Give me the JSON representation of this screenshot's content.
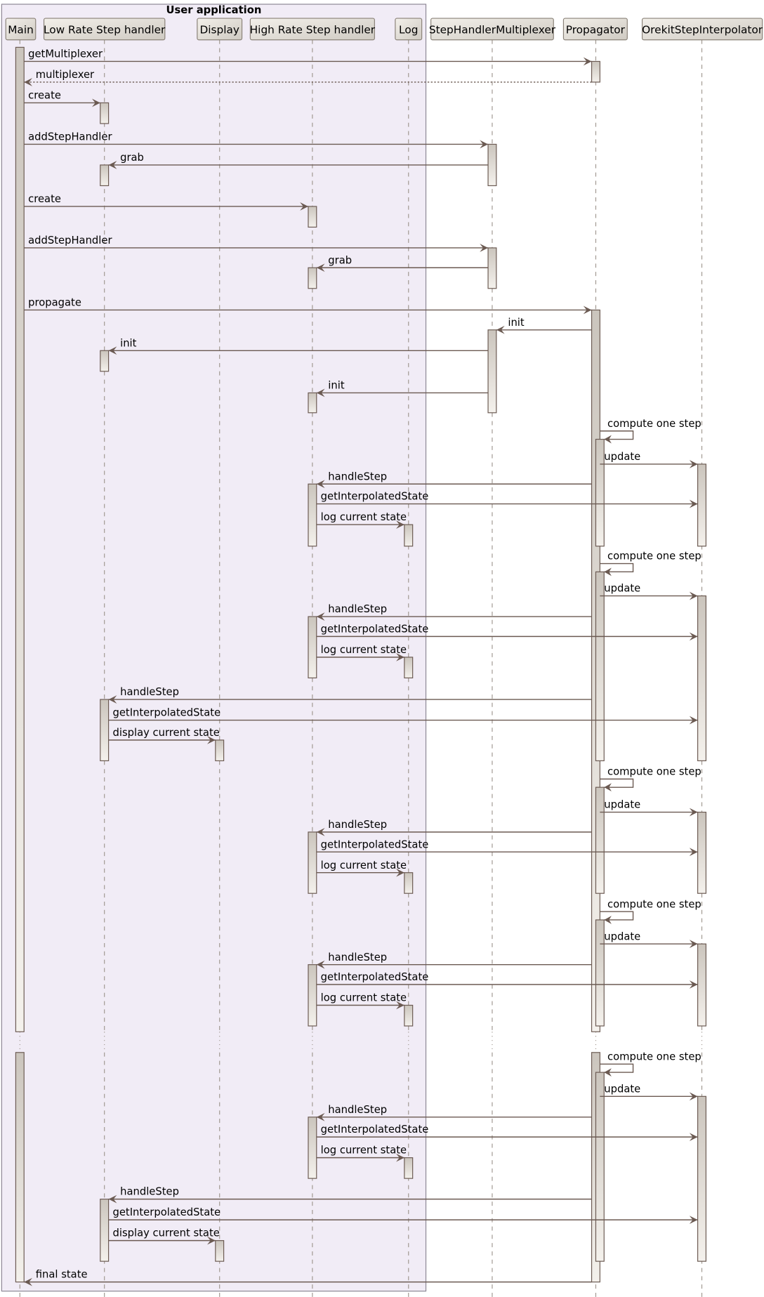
{
  "group": {
    "title": "User application",
    "members": [
      "Main",
      "Low Rate Step handler",
      "Display",
      "High Rate Step handler",
      "Log"
    ]
  },
  "participants": [
    {
      "id": "main",
      "label": "Main"
    },
    {
      "id": "low",
      "label": "Low Rate Step handler"
    },
    {
      "id": "display",
      "label": "Display"
    },
    {
      "id": "high",
      "label": "High Rate Step handler"
    },
    {
      "id": "log",
      "label": "Log"
    },
    {
      "id": "mux",
      "label": "StepHandlerMultiplexer"
    },
    {
      "id": "prop",
      "label": "Propagator"
    },
    {
      "id": "orekit",
      "label": "OrekitStepInterpolator"
    }
  ],
  "messages": [
    {
      "from": "main",
      "to": "prop",
      "label": "getMultiplexer"
    },
    {
      "from": "prop",
      "to": "main",
      "label": "multiplexer",
      "dashed": true
    },
    {
      "from": "main",
      "to": "low",
      "label": "create"
    },
    {
      "from": "main",
      "to": "mux",
      "label": "addStepHandler"
    },
    {
      "from": "mux",
      "to": "low",
      "label": "grab"
    },
    {
      "from": "main",
      "to": "high",
      "label": "create"
    },
    {
      "from": "main",
      "to": "mux",
      "label": "addStepHandler"
    },
    {
      "from": "mux",
      "to": "high",
      "label": "grab"
    },
    {
      "from": "main",
      "to": "prop",
      "label": "propagate"
    },
    {
      "from": "prop",
      "to": "mux",
      "label": "init"
    },
    {
      "from": "mux",
      "to": "low",
      "label": "init"
    },
    {
      "from": "mux",
      "to": "high",
      "label": "init"
    },
    {
      "from": "prop",
      "to": "prop",
      "label": "compute one step"
    },
    {
      "from": "prop",
      "to": "orekit",
      "label": "update"
    },
    {
      "from": "prop",
      "to": "high",
      "label": "handleStep"
    },
    {
      "from": "high",
      "to": "orekit",
      "label": "getInterpolatedState"
    },
    {
      "from": "high",
      "to": "log",
      "label": "log current state"
    },
    {
      "from": "prop",
      "to": "prop",
      "label": "compute one step"
    },
    {
      "from": "prop",
      "to": "orekit",
      "label": "update"
    },
    {
      "from": "prop",
      "to": "high",
      "label": "handleStep"
    },
    {
      "from": "high",
      "to": "orekit",
      "label": "getInterpolatedState"
    },
    {
      "from": "high",
      "to": "log",
      "label": "log current state"
    },
    {
      "from": "prop",
      "to": "low",
      "label": "handleStep"
    },
    {
      "from": "low",
      "to": "orekit",
      "label": "getInterpolatedState"
    },
    {
      "from": "low",
      "to": "display",
      "label": "display current state"
    },
    {
      "from": "prop",
      "to": "prop",
      "label": "compute one step"
    },
    {
      "from": "prop",
      "to": "orekit",
      "label": "update"
    },
    {
      "from": "prop",
      "to": "high",
      "label": "handleStep"
    },
    {
      "from": "high",
      "to": "orekit",
      "label": "getInterpolatedState"
    },
    {
      "from": "high",
      "to": "log",
      "label": "log current state"
    },
    {
      "from": "prop",
      "to": "prop",
      "label": "compute one step"
    },
    {
      "from": "prop",
      "to": "orekit",
      "label": "update"
    },
    {
      "from": "prop",
      "to": "high",
      "label": "handleStep"
    },
    {
      "from": "high",
      "to": "orekit",
      "label": "getInterpolatedState"
    },
    {
      "from": "high",
      "to": "log",
      "label": "log current state"
    },
    {
      "from": "prop",
      "to": "prop",
      "label": "compute one step"
    },
    {
      "from": "prop",
      "to": "orekit",
      "label": "update"
    },
    {
      "from": "prop",
      "to": "high",
      "label": "handleStep"
    },
    {
      "from": "high",
      "to": "orekit",
      "label": "getInterpolatedState"
    },
    {
      "from": "high",
      "to": "log",
      "label": "log current state"
    },
    {
      "from": "prop",
      "to": "low",
      "label": "handleStep"
    },
    {
      "from": "low",
      "to": "orekit",
      "label": "getInterpolatedState"
    },
    {
      "from": "low",
      "to": "display",
      "label": "display current state"
    },
    {
      "from": "prop",
      "to": "main",
      "label": "final state"
    }
  ],
  "colors": {
    "group_bg": "#f1ecf6",
    "group_border": "#8c8694",
    "arrow": "#6b5a52",
    "box_top": "#f3f0ea",
    "box_bottom": "#cfcac2",
    "box_border": "#8a8278",
    "lifeline": "#a09890"
  }
}
